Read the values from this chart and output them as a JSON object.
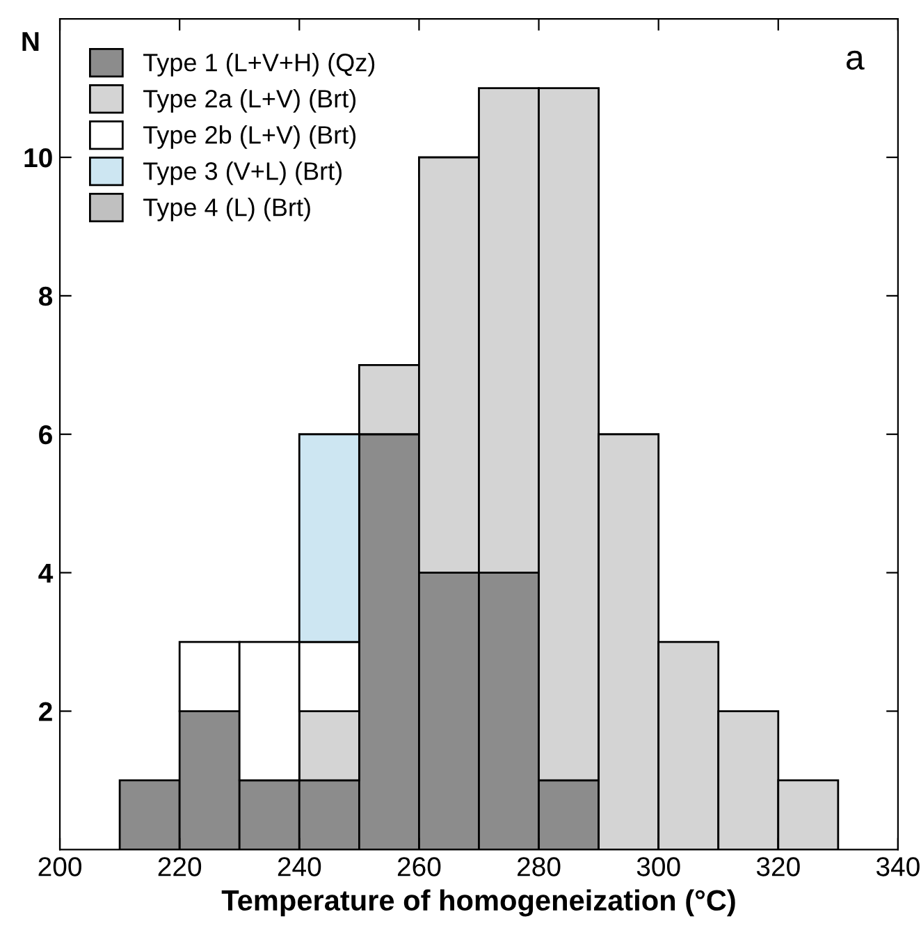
{
  "chart_data": {
    "type": "bar",
    "stacked": true,
    "xlabel": "Temperature of homogeneization (°C)",
    "ylabel": "N",
    "x": [
      215,
      225,
      235,
      245,
      255,
      265,
      275,
      285,
      295,
      305,
      315,
      325
    ],
    "series": [
      {
        "name": "Type 1 (L+V+H) (Qz)",
        "color": "#8c8c8c",
        "values": [
          1,
          2,
          1,
          1,
          6,
          4,
          4,
          1,
          0,
          0,
          0,
          0
        ]
      },
      {
        "name": "Type 2a (L+V) (Brt)",
        "color": "#d4d4d4",
        "values": [
          0,
          0,
          0,
          1,
          1,
          6,
          7,
          10,
          6,
          3,
          2,
          1
        ]
      },
      {
        "name": "Type 2b (L+V) (Brt)",
        "color": "#ffffff",
        "values": [
          0,
          1,
          2,
          1,
          0,
          0,
          0,
          0,
          0,
          0,
          0,
          0
        ]
      },
      {
        "name": "Type 3 (V+L) (Brt)",
        "color": "#cde6f2",
        "values": [
          0,
          0,
          0,
          3,
          0,
          0,
          0,
          0,
          0,
          0,
          0,
          0
        ]
      },
      {
        "name": "Type 4 (L) (Brt)",
        "color": "#c0c0c0",
        "values": [
          0,
          0,
          0,
          0,
          0,
          0,
          0,
          0,
          0,
          0,
          0,
          0
        ]
      }
    ],
    "xlim": [
      200,
      340
    ],
    "xticks": [
      200,
      220,
      240,
      260,
      280,
      300,
      320,
      340
    ],
    "ylim": [
      0,
      12
    ],
    "yticks": [
      2,
      4,
      6,
      8,
      10
    ],
    "annotations": [
      "a"
    ],
    "legend": "top left",
    "grid": false
  }
}
